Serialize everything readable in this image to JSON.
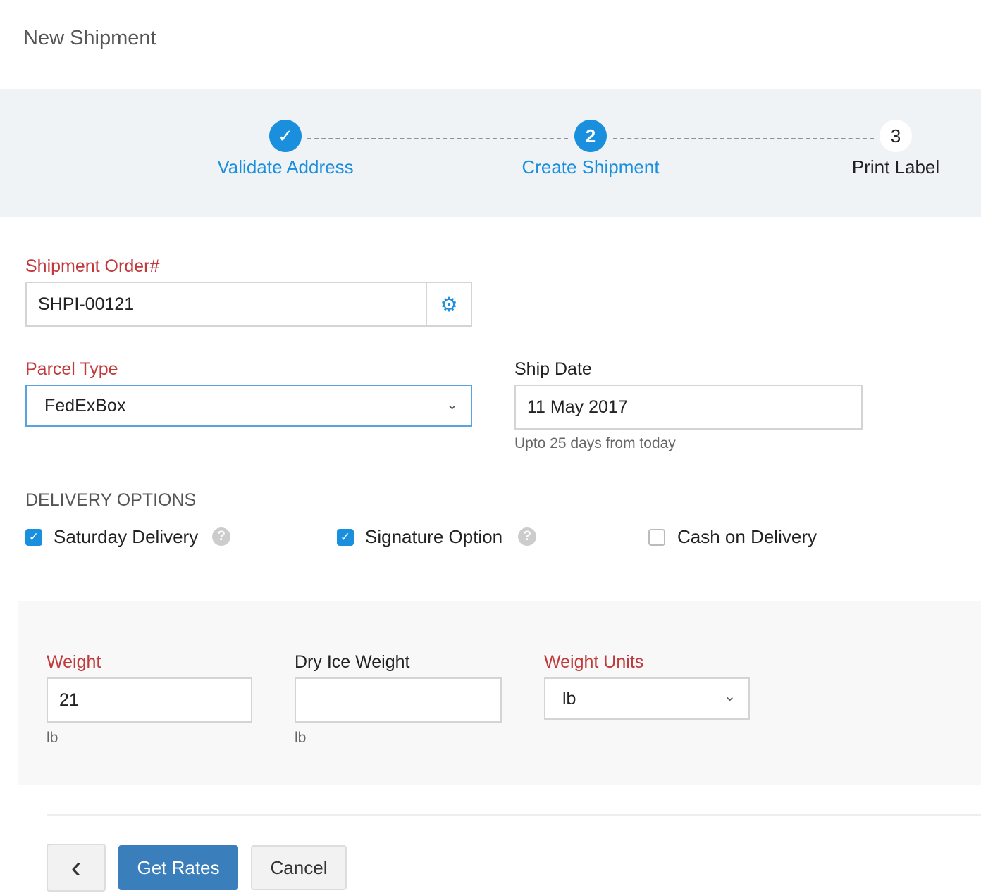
{
  "page": {
    "title": "New Shipment"
  },
  "steps": [
    {
      "label": "Validate Address",
      "marker": "✓",
      "state": "done"
    },
    {
      "label": "Create Shipment",
      "marker": "2",
      "state": "active"
    },
    {
      "label": "Print Label",
      "marker": "3",
      "state": "pending"
    }
  ],
  "form": {
    "order_label": "Shipment Order#",
    "order_value": "SHPI-00121",
    "parcel_label": "Parcel Type",
    "parcel_value": "FedExBox",
    "date_label": "Ship Date",
    "date_value": "11 May 2017",
    "date_help": "Upto 25 days from today",
    "delivery_heading": "DELIVERY OPTIONS",
    "options": [
      {
        "label": "Saturday Delivery",
        "checked": true,
        "help": "?"
      },
      {
        "label": "Signature Option",
        "checked": true,
        "help": "?"
      },
      {
        "label": "Cash on Delivery",
        "checked": false
      }
    ]
  },
  "weight": {
    "weight_label": "Weight",
    "weight_value": "21",
    "weight_unit": "lb",
    "dry_label": "Dry Ice Weight",
    "dry_value": "",
    "dry_unit": "lb",
    "units_label": "Weight Units",
    "units_value": "lb"
  },
  "footer": {
    "back": "‹",
    "get_rates": "Get Rates",
    "cancel": "Cancel"
  },
  "colors": {
    "accent": "#1a8fdd",
    "required": "#c0393b",
    "primary_button": "#3a7fbc"
  }
}
